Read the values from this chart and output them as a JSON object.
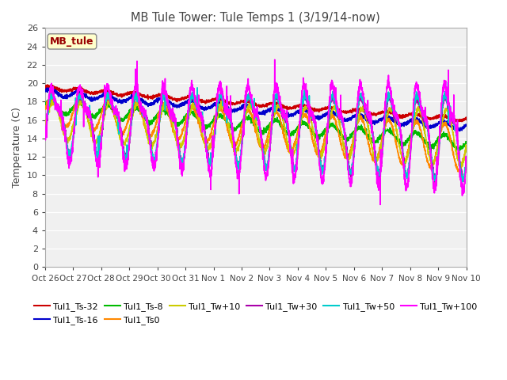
{
  "title": "MB Tule Tower: Tule Temps 1 (3/19/14-now)",
  "xlabel": "",
  "ylabel": "Temperature (C)",
  "ylim": [
    0,
    26
  ],
  "yticks": [
    0,
    2,
    4,
    6,
    8,
    10,
    12,
    14,
    16,
    18,
    20,
    22,
    24,
    26
  ],
  "xlim_days": [
    0,
    15
  ],
  "x_tick_labels": [
    "Oct 26",
    "Oct 27",
    "Oct 28",
    "Oct 29",
    "Oct 30",
    "Oct 31",
    "Nov 1",
    "Nov 2",
    "Nov 3",
    "Nov 4",
    "Nov 5",
    "Nov 6",
    "Nov 7",
    "Nov 8",
    "Nov 9",
    "Nov 10"
  ],
  "legend_box_label": "MB_tule",
  "series": [
    {
      "name": "Tul1_Ts-32",
      "color": "#cc0000",
      "lw": 1.2
    },
    {
      "name": "Tul1_Ts-16",
      "color": "#0000cc",
      "lw": 1.2
    },
    {
      "name": "Tul1_Ts-8",
      "color": "#00bb00",
      "lw": 1.2
    },
    {
      "name": "Tul1_Ts0",
      "color": "#ff8800",
      "lw": 1.2
    },
    {
      "name": "Tul1_Tw+10",
      "color": "#cccc00",
      "lw": 1.2
    },
    {
      "name": "Tul1_Tw+30",
      "color": "#aa00aa",
      "lw": 1.2
    },
    {
      "name": "Tul1_Tw+50",
      "color": "#00cccc",
      "lw": 1.2
    },
    {
      "name": "Tul1_Tw+100",
      "color": "#ff00ff",
      "lw": 1.2
    }
  ]
}
